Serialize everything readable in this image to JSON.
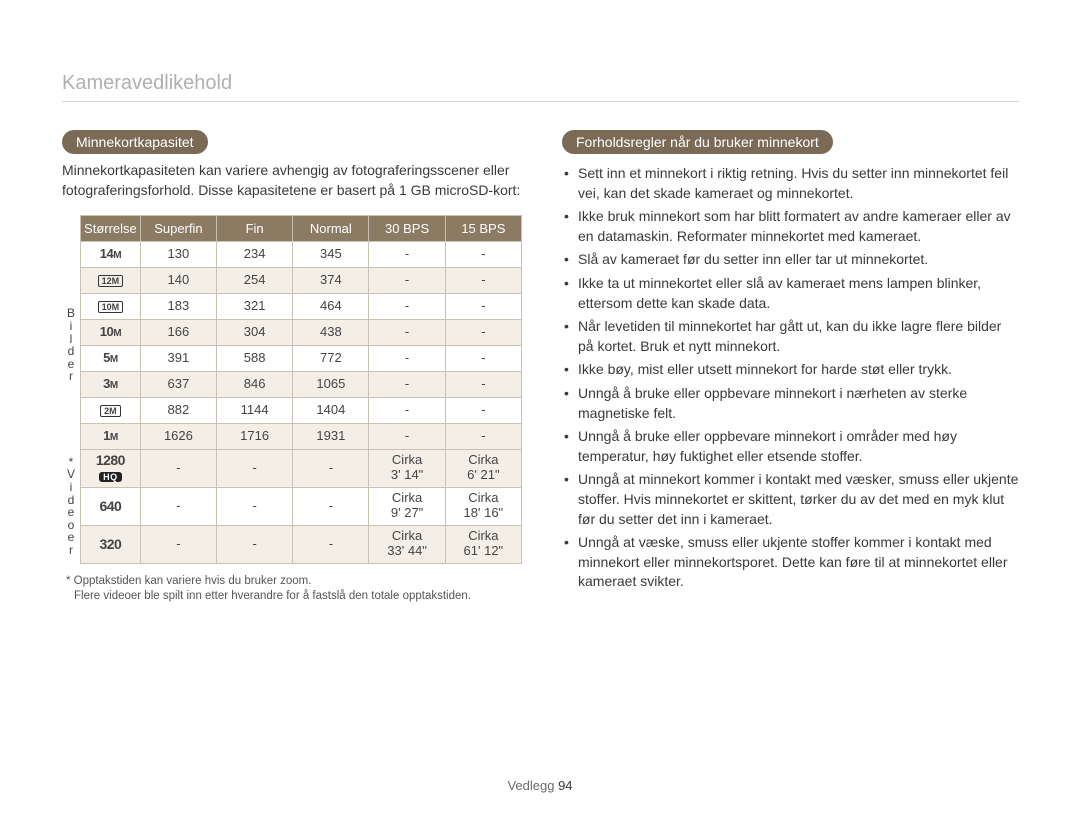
{
  "page_title": "Kameravedlikehold",
  "footer_label": "Vedlegg",
  "footer_page": "94",
  "left": {
    "heading": "Minnekortkapasitet",
    "intro": "Minnekortkapasiteten kan variere avhengig av fotograferingsscener eller fotograferingsforhold. Disse kapasitetene er basert på 1 GB microSD-kort:",
    "group_bilder": "Bilder",
    "group_video": "Videoer",
    "group_video_marker": "*",
    "columns": [
      "Størrelse",
      "Superfin",
      "Fin",
      "Normal",
      "30 BPS",
      "15 BPS"
    ],
    "rows_bilder": [
      {
        "size_html": "<span class='size-icon'>14<span style='font-size:10px'>M</span></span>",
        "cells": [
          "130",
          "234",
          "345",
          "-",
          "-"
        ]
      },
      {
        "size_html": "<span class='boxed'>12M</span>",
        "cells": [
          "140",
          "254",
          "374",
          "-",
          "-"
        ]
      },
      {
        "size_html": "<span class='boxed'>10M</span>",
        "cells": [
          "183",
          "321",
          "464",
          "-",
          "-"
        ]
      },
      {
        "size_html": "<span class='size-icon'>10<span style='font-size:10px'>M</span></span>",
        "cells": [
          "166",
          "304",
          "438",
          "-",
          "-"
        ]
      },
      {
        "size_html": "<span class='size-icon'>5<span style='font-size:10px'>M</span></span>",
        "cells": [
          "391",
          "588",
          "772",
          "-",
          "-"
        ]
      },
      {
        "size_html": "<span class='size-icon'>3<span style='font-size:10px'>M</span></span>",
        "cells": [
          "637",
          "846",
          "1065",
          "-",
          "-"
        ]
      },
      {
        "size_html": "<span class='boxed'>2M</span>",
        "cells": [
          "882",
          "1144",
          "1404",
          "-",
          "-"
        ]
      },
      {
        "size_html": "<span class='size-icon'>1<span style='font-size:10px'>M</span></span>",
        "cells": [
          "1626",
          "1716",
          "1931",
          "-",
          "-"
        ]
      }
    ],
    "rows_video": [
      {
        "size_html": "<span class='size-icon' style='font-size:14px'>1280</span><br><span class='hq-badge'>HQ</span>",
        "cells": [
          "-",
          "-",
          "-",
          "Cirka<br>3' 14\"",
          "Cirka<br>6' 21\""
        ]
      },
      {
        "size_html": "<span class='size-icon' style='font-size:14px'>640</span>",
        "cells": [
          "-",
          "-",
          "-",
          "Cirka<br>9' 27\"",
          "Cirka<br>18' 16\""
        ]
      },
      {
        "size_html": "<span class='size-icon' style='font-size:14px'>320</span>",
        "cells": [
          "-",
          "-",
          "-",
          "Cirka<br>33' 44\"",
          "Cirka<br>61' 12\""
        ]
      }
    ],
    "footnote1": "* Opptakstiden kan variere hvis du bruker zoom.",
    "footnote2": "Flere videoer ble spilt inn etter hverandre for å fastslå den totale opptakstiden."
  },
  "right": {
    "heading": "Forholdsregler når du bruker minnekort",
    "items": [
      "Sett inn et minnekort i riktig retning. Hvis du setter inn minnekortet feil vei, kan det skade kameraet og minnekortet.",
      "Ikke bruk minnekort som har blitt formatert av andre kameraer eller av en datamaskin. Reformater minnekortet med kameraet.",
      "Slå av kameraet før du setter inn eller tar ut minnekortet.",
      "Ikke ta ut minnekortet eller slå av kameraet mens lampen blinker, ettersom dette kan skade data.",
      "Når levetiden til minnekortet har gått ut, kan du ikke lagre flere bilder på kortet. Bruk et nytt minnekort.",
      "Ikke bøy, mist eller utsett minnekort for harde støt eller trykk.",
      "Unngå å bruke eller oppbevare minnekort i nærheten av sterke magnetiske felt.",
      "Unngå å bruke eller oppbevare minnekort i områder med høy temperatur, høy fuktighet eller etsende stoffer.",
      "Unngå at minnekort kommer i kontakt med væsker, smuss eller ukjente stoffer. Hvis minnekortet er skittent, tørker du av det med en myk klut før du setter det inn i kameraet.",
      "Unngå at væske, smuss eller ukjente stoffer kommer i kontakt med minnekort eller minnekortsporet. Dette kan føre til at minnekortet eller kameraet svikter."
    ]
  },
  "colors": {
    "pill_bg": "#7a6a56",
    "header_bg": "#8c7b63",
    "row_alt_bg": "#f3efe7",
    "border": "#c9c1b4",
    "title_color": "#b0b0b0"
  }
}
